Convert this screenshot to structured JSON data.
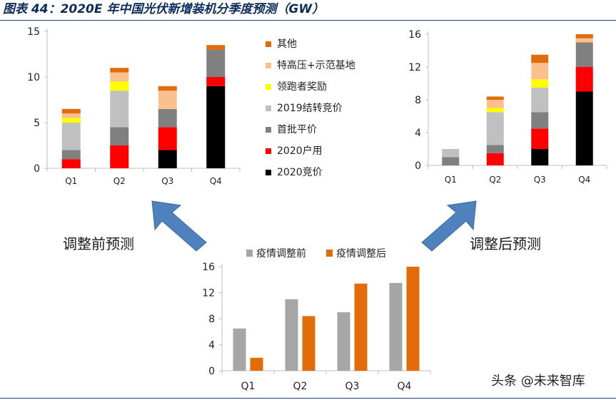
{
  "figure": {
    "title": "图表 44：2020E 年中国光伏新增装机分季度预测（GW）",
    "caption_left": "调整前预测",
    "caption_right": "调整后预测",
    "watermark": "头条 @未来智库"
  },
  "colors": {
    "qita": "#e36c0a",
    "tegaoya": "#fac090",
    "lingpaozhe": "#ffff00",
    "jiezhuan2019": "#c0c0c0",
    "shoupi": "#808080",
    "huyong2020": "#ff0000",
    "jingjia2020": "#000000",
    "before": "#a6a6a6",
    "after": "#e36c0a",
    "arrow": "#4f81bd",
    "axis": "#bfbfbf"
  },
  "chart_data": [
    {
      "id": "before",
      "type": "bar",
      "stacked": true,
      "categories": [
        "Q1",
        "Q2",
        "Q3",
        "Q4"
      ],
      "ylim": [
        0,
        15
      ],
      "yticks": [
        0,
        5,
        10,
        15
      ],
      "legend_position": "right",
      "series": [
        {
          "name": "2020竞价",
          "color_key": "jingjia2020",
          "values": [
            0,
            0,
            2,
            9
          ]
        },
        {
          "name": "2020户用",
          "color_key": "huyong2020",
          "values": [
            1,
            2.5,
            2.5,
            1
          ]
        },
        {
          "name": "首批平价",
          "color_key": "shoupi",
          "values": [
            1,
            2,
            2,
            3
          ]
        },
        {
          "name": "2019结转竞价",
          "color_key": "jiezhuan2019",
          "values": [
            3,
            4,
            0,
            0
          ]
        },
        {
          "name": "领跑者奖励",
          "color_key": "lingpaozhe",
          "values": [
            0.5,
            1,
            0,
            0
          ]
        },
        {
          "name": "特高压+示范基地",
          "color_key": "tegaoya",
          "values": [
            0.5,
            1,
            2,
            0
          ]
        },
        {
          "name": "其他",
          "color_key": "qita",
          "values": [
            0.5,
            0.5,
            0.5,
            0.5
          ]
        }
      ],
      "legend_order": [
        "其他",
        "特高压+示范基地",
        "领跑者奖励",
        "2019结转竞价",
        "首批平价",
        "2020户用",
        "2020竞价"
      ]
    },
    {
      "id": "after",
      "type": "bar",
      "stacked": true,
      "categories": [
        "Q1",
        "Q2",
        "Q3",
        "Q4"
      ],
      "ylim": [
        0,
        16
      ],
      "yticks": [
        0,
        4,
        8,
        12,
        16
      ],
      "series": [
        {
          "name": "2020竞价",
          "color_key": "jingjia2020",
          "values": [
            0,
            0,
            2,
            9
          ]
        },
        {
          "name": "2020户用",
          "color_key": "huyong2020",
          "values": [
            0,
            1.5,
            2.5,
            3
          ]
        },
        {
          "name": "首批平价",
          "color_key": "shoupi",
          "values": [
            1,
            1,
            2,
            3
          ]
        },
        {
          "name": "2019结转竞价",
          "color_key": "jiezhuan2019",
          "values": [
            1,
            4,
            3,
            0
          ]
        },
        {
          "name": "领跑者奖励",
          "color_key": "lingpaozhe",
          "values": [
            0,
            0.5,
            1,
            0
          ]
        },
        {
          "name": "特高压+示范基地",
          "color_key": "tegaoya",
          "values": [
            0,
            1,
            2,
            0.5
          ]
        },
        {
          "name": "其他",
          "color_key": "qita",
          "values": [
            0,
            0.4,
            1,
            0.5
          ]
        }
      ]
    },
    {
      "id": "compare",
      "type": "bar",
      "stacked": false,
      "categories": [
        "Q1",
        "Q2",
        "Q3",
        "Q4"
      ],
      "ylim": [
        0,
        16
      ],
      "yticks": [
        0,
        4,
        8,
        12,
        16
      ],
      "legend_position": "top",
      "series": [
        {
          "name": "疫情调整前",
          "color_key": "before",
          "values": [
            6.5,
            11,
            9,
            13.5
          ]
        },
        {
          "name": "疫情调整后",
          "color_key": "after",
          "values": [
            2,
            8.4,
            13.4,
            16
          ]
        }
      ]
    }
  ]
}
